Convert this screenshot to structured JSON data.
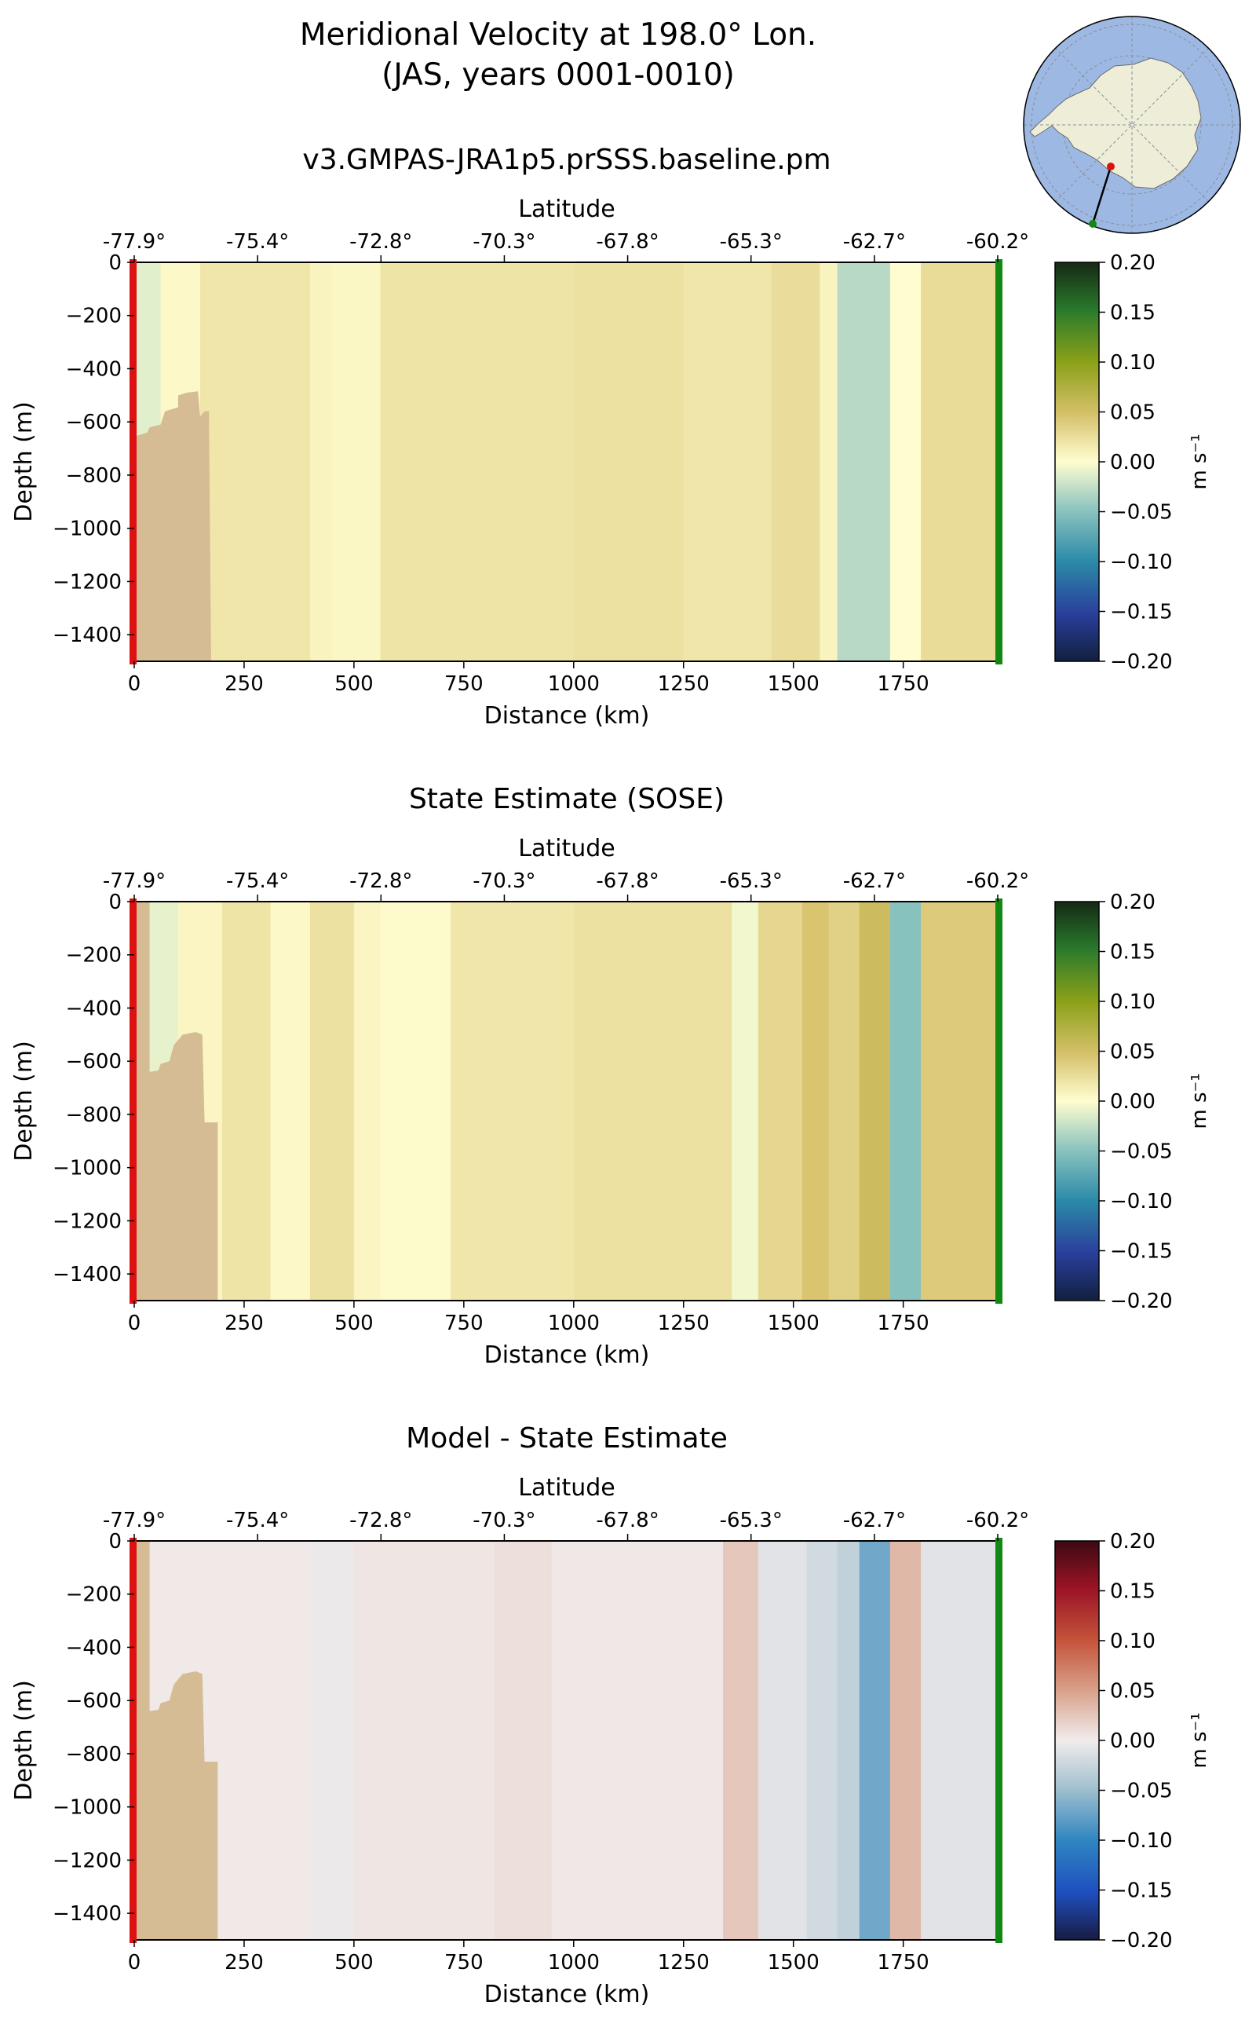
{
  "figure": {
    "title_line1": "Meridional Velocity at 198.0° Lon.",
    "title_line2": "(JAS, years 0001-0010)"
  },
  "inset_map": {
    "description": "Antarctica polar projection with transect line",
    "start_color": "#dd1111",
    "end_color": "#118811"
  },
  "chart_data": [
    {
      "type": "heatmap",
      "title": "v3.GMPAS-JRA1p5.prSSS.baseline.pm",
      "xlabel": "Distance (km)",
      "ylabel": "Depth (m)",
      "top_xlabel": "Latitude",
      "x_ticks": [
        0,
        250,
        500,
        750,
        1000,
        1250,
        1500,
        1750
      ],
      "x_tick_labels": [
        "0",
        "250",
        "500",
        "750",
        "1000",
        "1250",
        "1500",
        "1750"
      ],
      "y_ticks": [
        0,
        -200,
        -400,
        -600,
        -800,
        -1000,
        -1200,
        -1400
      ],
      "y_tick_labels": [
        "0",
        "−200",
        "−400",
        "−600",
        "−800",
        "−1000",
        "−1200",
        "−1400"
      ],
      "lat_ticks": [
        "-77.9°",
        "-75.4°",
        "-72.8°",
        "-70.3°",
        "-67.8°",
        "-65.3°",
        "-62.7°",
        "-60.2°"
      ],
      "xlim": [
        0,
        1965
      ],
      "ylim": [
        -1500,
        0
      ],
      "colorbar": {
        "label": "m s⁻¹",
        "ticks": [
          "0.20",
          "0.15",
          "0.10",
          "0.05",
          "0.00",
          "−0.05",
          "−0.10",
          "−0.15",
          "−0.20"
        ],
        "range": [
          -0.2,
          0.2
        ],
        "colormap": "delta"
      },
      "land": {
        "color": "#d6bc94",
        "outline": [
          [
            0,
            -655
          ],
          [
            30,
            -640
          ],
          [
            35,
            -620
          ],
          [
            60,
            -610
          ],
          [
            70,
            -560
          ],
          [
            100,
            -545
          ],
          [
            100,
            -500
          ],
          [
            120,
            -490
          ],
          [
            145,
            -485
          ],
          [
            150,
            -580
          ],
          [
            160,
            -560
          ],
          [
            170,
            -560
          ],
          [
            175,
            -1500
          ],
          [
            0,
            -1500
          ]
        ]
      },
      "columns": [
        {
          "x0": 0,
          "x1": 60,
          "v": -0.012
        },
        {
          "x0": 60,
          "x1": 150,
          "v": 0.004
        },
        {
          "x0": 150,
          "x1": 400,
          "v": 0.018
        },
        {
          "x0": 400,
          "x1": 450,
          "v": 0.008
        },
        {
          "x0": 450,
          "x1": 560,
          "v": 0.005
        },
        {
          "x0": 560,
          "x1": 750,
          "v": 0.02
        },
        {
          "x0": 750,
          "x1": 1000,
          "v": 0.02
        },
        {
          "x0": 1000,
          "x1": 1250,
          "v": 0.022
        },
        {
          "x0": 1250,
          "x1": 1450,
          "v": 0.018
        },
        {
          "x0": 1450,
          "x1": 1560,
          "v": 0.025
        },
        {
          "x0": 1560,
          "x1": 1600,
          "v": 0.008
        },
        {
          "x0": 1600,
          "x1": 1720,
          "v": -0.03
        },
        {
          "x0": 1720,
          "x1": 1790,
          "v": 0.0
        },
        {
          "x0": 1790,
          "x1": 1965,
          "v": 0.026
        }
      ]
    },
    {
      "type": "heatmap",
      "title": "State Estimate (SOSE)",
      "xlabel": "Distance (km)",
      "ylabel": "Depth (m)",
      "top_xlabel": "Latitude",
      "x_ticks": [
        0,
        250,
        500,
        750,
        1000,
        1250,
        1500,
        1750
      ],
      "x_tick_labels": [
        "0",
        "250",
        "500",
        "750",
        "1000",
        "1250",
        "1500",
        "1750"
      ],
      "y_ticks": [
        0,
        -200,
        -400,
        -600,
        -800,
        -1000,
        -1200,
        -1400
      ],
      "y_tick_labels": [
        "0",
        "−200",
        "−400",
        "−600",
        "−800",
        "−1000",
        "−1200",
        "−1400"
      ],
      "lat_ticks": [
        "-77.9°",
        "-75.4°",
        "-72.8°",
        "-70.3°",
        "-67.8°",
        "-65.3°",
        "-62.7°",
        "-60.2°"
      ],
      "xlim": [
        0,
        1965
      ],
      "ylim": [
        -1500,
        0
      ],
      "colorbar": {
        "label": "m s⁻¹",
        "ticks": [
          "0.20",
          "0.15",
          "0.10",
          "0.05",
          "0.00",
          "−0.05",
          "−0.10",
          "−0.15",
          "−0.20"
        ],
        "range": [
          -0.2,
          0.2
        ],
        "colormap": "delta"
      },
      "land": {
        "color": "#d6bc94",
        "outline": [
          [
            0,
            -1500
          ],
          [
            0,
            0
          ],
          [
            35,
            0
          ],
          [
            35,
            -640
          ],
          [
            55,
            -635
          ],
          [
            60,
            -610
          ],
          [
            80,
            -600
          ],
          [
            90,
            -540
          ],
          [
            110,
            -500
          ],
          [
            140,
            -490
          ],
          [
            155,
            -500
          ],
          [
            160,
            -830
          ],
          [
            190,
            -830
          ],
          [
            190,
            -1500
          ]
        ]
      },
      "columns": [
        {
          "x0": 0,
          "x1": 100,
          "v": -0.01
        },
        {
          "x0": 100,
          "x1": 200,
          "v": 0.006
        },
        {
          "x0": 200,
          "x1": 310,
          "v": 0.02
        },
        {
          "x0": 310,
          "x1": 400,
          "v": 0.004
        },
        {
          "x0": 400,
          "x1": 500,
          "v": 0.022
        },
        {
          "x0": 500,
          "x1": 560,
          "v": 0.006
        },
        {
          "x0": 560,
          "x1": 720,
          "v": 0.002
        },
        {
          "x0": 720,
          "x1": 1000,
          "v": 0.018
        },
        {
          "x0": 1000,
          "x1": 1360,
          "v": 0.022
        },
        {
          "x0": 1360,
          "x1": 1420,
          "v": -0.005
        },
        {
          "x0": 1420,
          "x1": 1520,
          "v": 0.03
        },
        {
          "x0": 1520,
          "x1": 1580,
          "v": 0.045
        },
        {
          "x0": 1580,
          "x1": 1650,
          "v": 0.035
        },
        {
          "x0": 1650,
          "x1": 1720,
          "v": 0.055
        },
        {
          "x0": 1720,
          "x1": 1790,
          "v": -0.05
        },
        {
          "x0": 1790,
          "x1": 1965,
          "v": 0.04
        }
      ]
    },
    {
      "type": "heatmap",
      "title": "Model - State Estimate",
      "xlabel": "Distance (km)",
      "ylabel": "Depth (m)",
      "top_xlabel": "Latitude",
      "x_ticks": [
        0,
        250,
        500,
        750,
        1000,
        1250,
        1500,
        1750
      ],
      "x_tick_labels": [
        "0",
        "250",
        "500",
        "750",
        "1000",
        "1250",
        "1500",
        "1750"
      ],
      "y_ticks": [
        0,
        -200,
        -400,
        -600,
        -800,
        -1000,
        -1200,
        -1400
      ],
      "y_tick_labels": [
        "0",
        "−200",
        "−400",
        "−600",
        "−800",
        "−1000",
        "−1200",
        "−1400"
      ],
      "lat_ticks": [
        "-77.9°",
        "-75.4°",
        "-72.8°",
        "-70.3°",
        "-67.8°",
        "-65.3°",
        "-62.7°",
        "-60.2°"
      ],
      "xlim": [
        0,
        1965
      ],
      "ylim": [
        -1500,
        0
      ],
      "colorbar": {
        "label": "m s⁻¹",
        "ticks": [
          "0.20",
          "0.15",
          "0.10",
          "0.05",
          "0.00",
          "−0.05",
          "−0.10",
          "−0.15",
          "−0.20"
        ],
        "range": [
          -0.2,
          0.2
        ],
        "colormap": "balance"
      },
      "land": {
        "color": "#d6bc94",
        "outline": [
          [
            0,
            -1500
          ],
          [
            0,
            0
          ],
          [
            35,
            0
          ],
          [
            35,
            -640
          ],
          [
            55,
            -635
          ],
          [
            60,
            -610
          ],
          [
            80,
            -600
          ],
          [
            90,
            -540
          ],
          [
            110,
            -500
          ],
          [
            140,
            -490
          ],
          [
            155,
            -500
          ],
          [
            160,
            -830
          ],
          [
            190,
            -830
          ],
          [
            190,
            -1500
          ]
        ]
      },
      "columns": [
        {
          "x0": 0,
          "x1": 400,
          "v": 0.002
        },
        {
          "x0": 400,
          "x1": 500,
          "v": -0.003
        },
        {
          "x0": 500,
          "x1": 820,
          "v": 0.004
        },
        {
          "x0": 820,
          "x1": 950,
          "v": 0.008
        },
        {
          "x0": 950,
          "x1": 1340,
          "v": 0.003
        },
        {
          "x0": 1340,
          "x1": 1420,
          "v": 0.025
        },
        {
          "x0": 1420,
          "x1": 1530,
          "v": -0.01
        },
        {
          "x0": 1530,
          "x1": 1600,
          "v": -0.02
        },
        {
          "x0": 1600,
          "x1": 1650,
          "v": -0.03
        },
        {
          "x0": 1650,
          "x1": 1720,
          "v": -0.07
        },
        {
          "x0": 1720,
          "x1": 1790,
          "v": 0.035
        },
        {
          "x0": 1790,
          "x1": 1965,
          "v": -0.01
        }
      ]
    }
  ]
}
